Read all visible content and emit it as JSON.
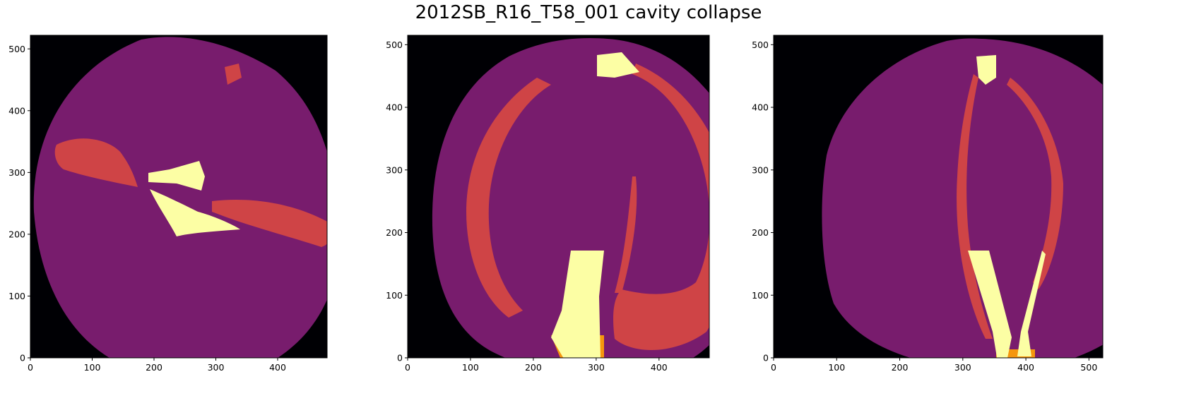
{
  "figure": {
    "title": "2012SB_R16_T58_001 cavity collapse"
  },
  "colors": {
    "background": "#000004",
    "tissue": "#781c6d",
    "dense": "#cf4446",
    "cavity_edge": "#f5960d",
    "cavity": "#fcfea4"
  },
  "chart_data": [
    {
      "type": "heatmap",
      "title": "",
      "xlabel": "",
      "ylabel": "",
      "xlim": [
        0,
        480
      ],
      "ylim": [
        0,
        522
      ],
      "xticks": [
        "0",
        "100",
        "200",
        "300",
        "400"
      ],
      "yticks": [
        "0",
        "100",
        "200",
        "300",
        "400",
        "500"
      ],
      "colormap": "inferno",
      "view": "axial slice"
    },
    {
      "type": "heatmap",
      "title": "",
      "xlabel": "",
      "ylabel": "",
      "xlim": [
        0,
        480
      ],
      "ylim": [
        0,
        515
      ],
      "xticks": [
        "0",
        "100",
        "200",
        "300",
        "400"
      ],
      "yticks": [
        "0",
        "100",
        "200",
        "300",
        "400",
        "500"
      ],
      "colormap": "inferno",
      "view": "coronal slice"
    },
    {
      "type": "heatmap",
      "title": "",
      "xlabel": "",
      "ylabel": "",
      "xlim": [
        0,
        522
      ],
      "ylim": [
        0,
        515
      ],
      "xticks": [
        "0",
        "100",
        "200",
        "300",
        "400",
        "500"
      ],
      "yticks": [
        "0",
        "100",
        "200",
        "300",
        "400",
        "500"
      ],
      "colormap": "inferno",
      "view": "sagittal slice"
    }
  ]
}
